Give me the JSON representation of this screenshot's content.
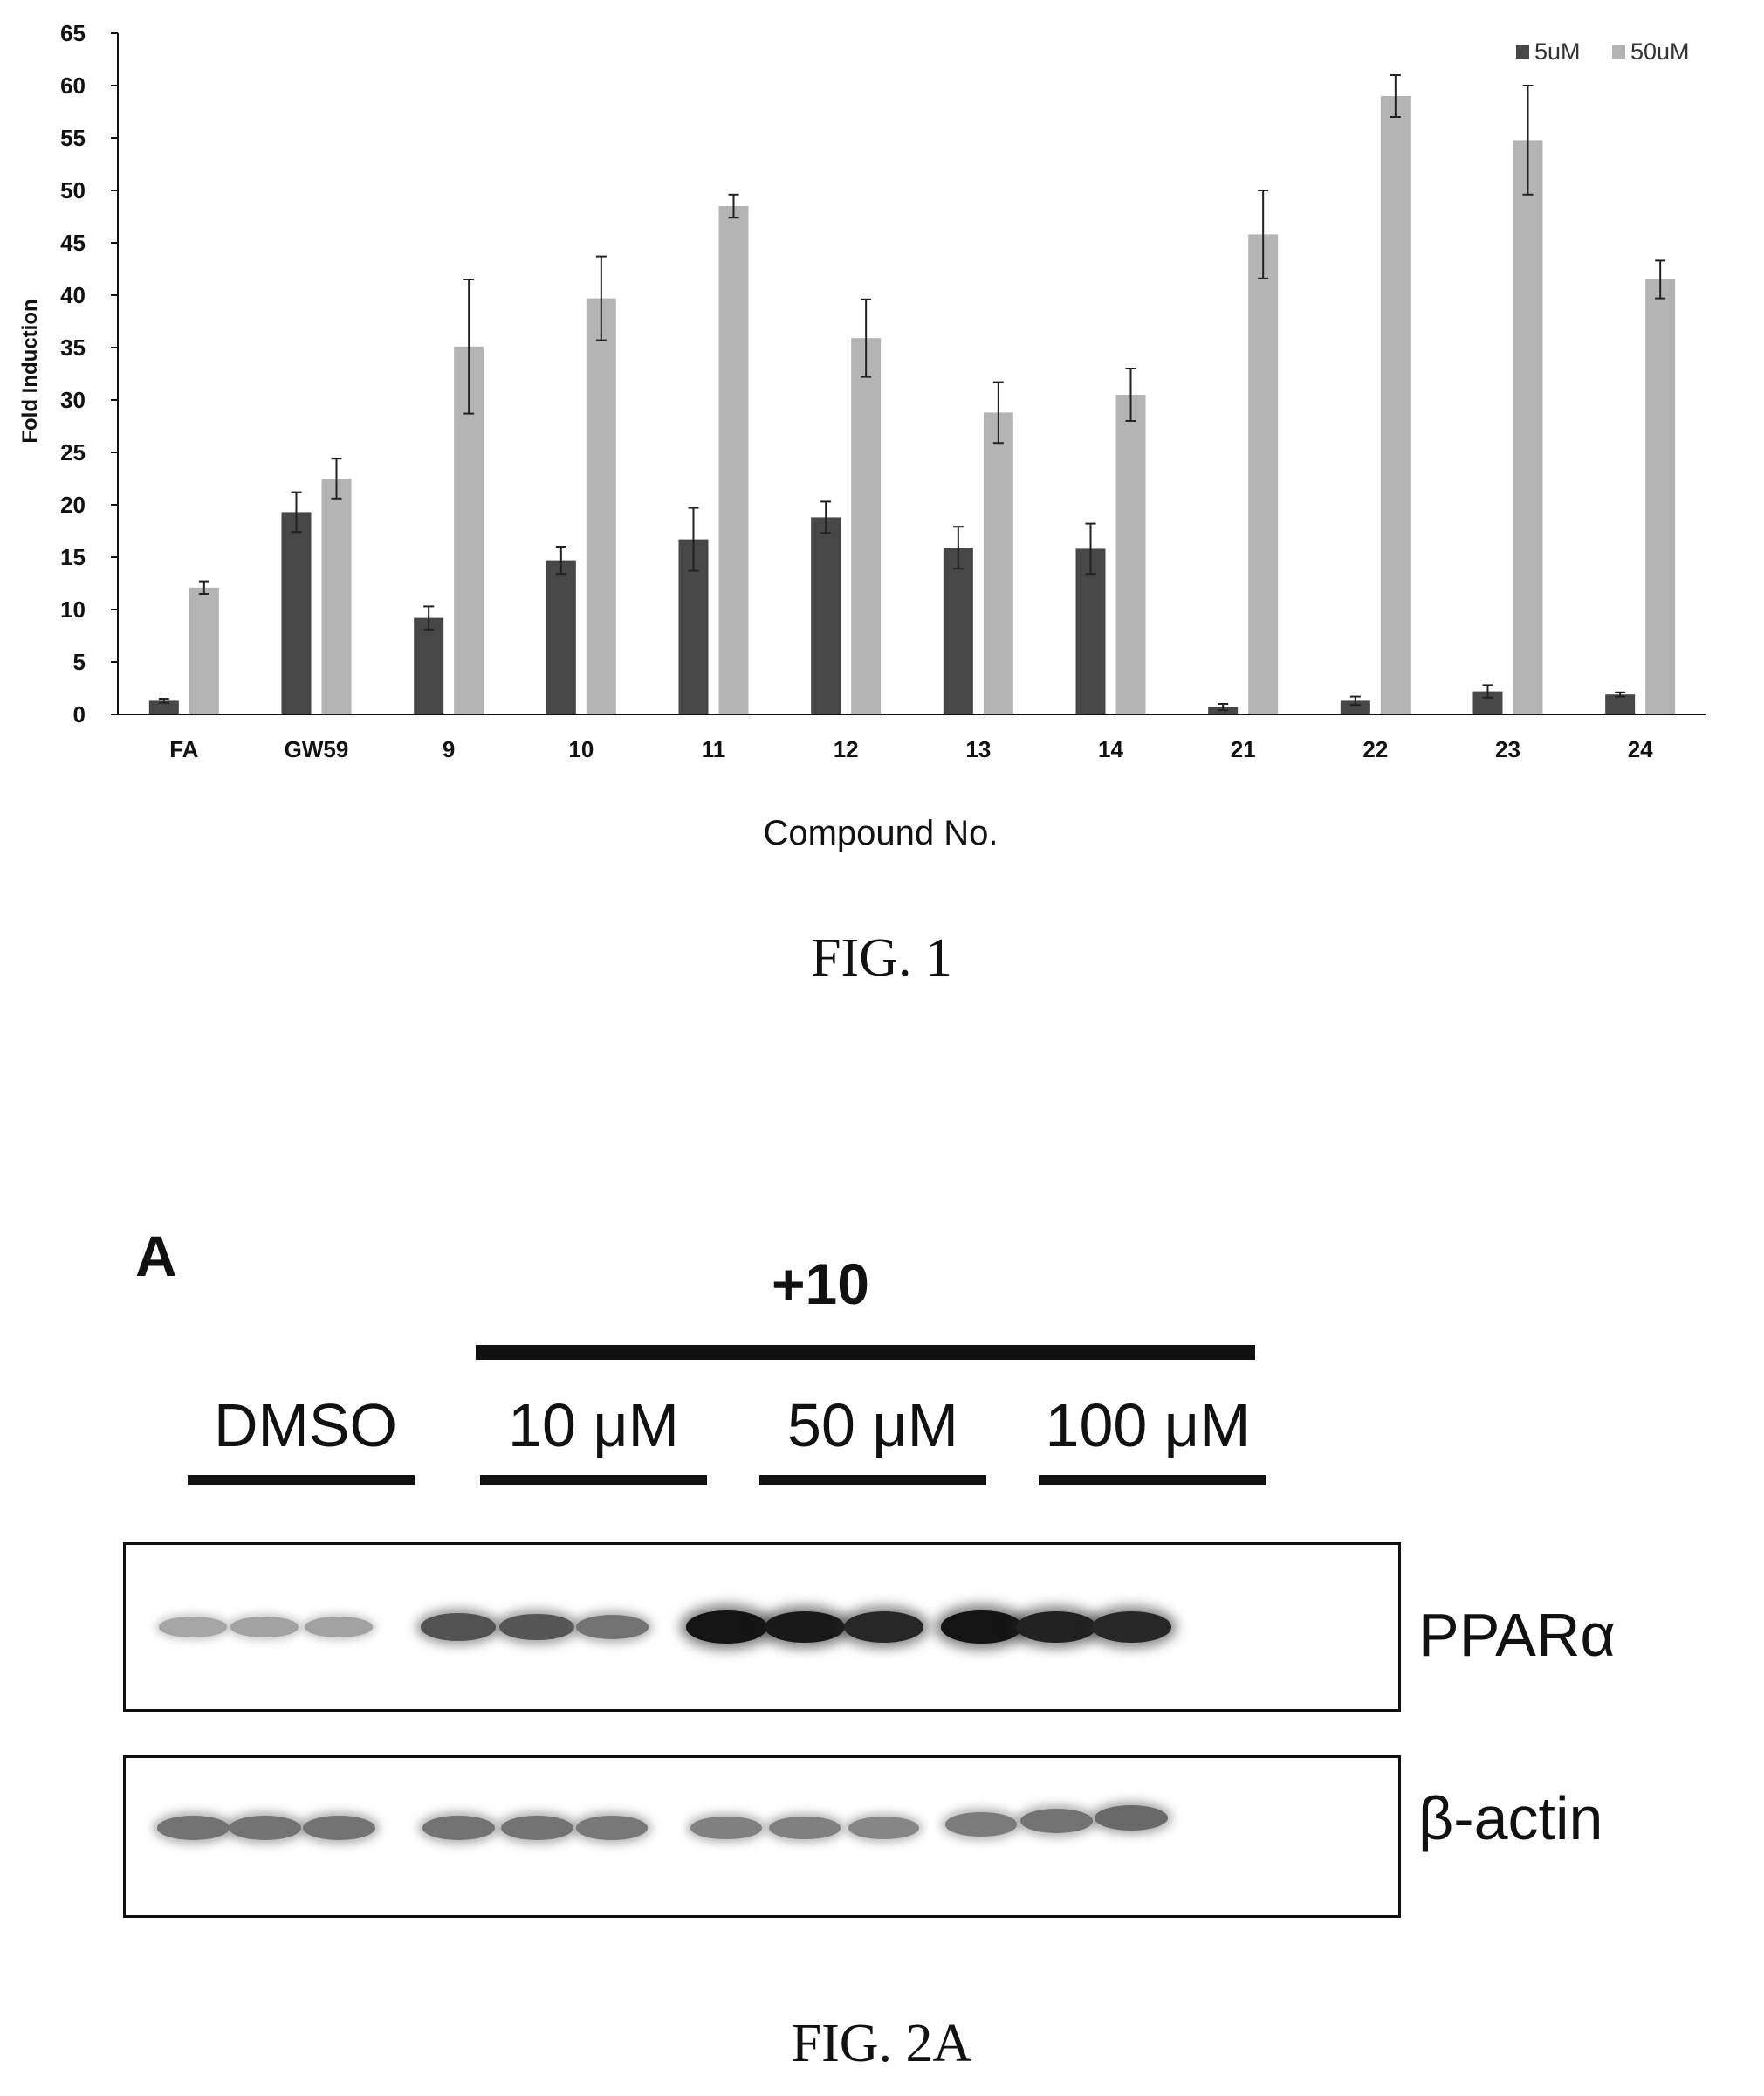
{
  "figure1": {
    "caption": "FIG. 1",
    "chart_data": {
      "type": "bar",
      "title": "",
      "xlabel": "Compound No.",
      "ylabel": "Fold Induction",
      "ylim": [
        0,
        65
      ],
      "yticks": [
        0,
        5,
        10,
        15,
        20,
        25,
        30,
        35,
        40,
        45,
        50,
        55,
        60,
        65
      ],
      "grid": false,
      "legend_position": "top-right",
      "categories": [
        "FA",
        "GW59",
        "9",
        "10",
        "11",
        "12",
        "13",
        "14",
        "21",
        "22",
        "23",
        "24"
      ],
      "series": [
        {
          "name": "5uM",
          "color": "#474747",
          "values": [
            1.3,
            19.3,
            9.2,
            14.7,
            16.7,
            18.8,
            15.9,
            15.8,
            0.7,
            1.3,
            2.2,
            1.9
          ],
          "errors": [
            0.2,
            1.9,
            1.1,
            1.3,
            3.0,
            1.5,
            2.0,
            2.4,
            0.3,
            0.4,
            0.6,
            0.2
          ]
        },
        {
          "name": "50uM",
          "color": "#b4b4b4",
          "values": [
            12.1,
            22.5,
            35.1,
            39.7,
            48.5,
            35.9,
            28.8,
            30.5,
            45.8,
            59.0,
            54.8,
            41.5
          ],
          "errors": [
            0.6,
            1.9,
            6.4,
            4.0,
            1.1,
            3.7,
            2.9,
            2.5,
            4.2,
            2.0,
            5.2,
            1.8
          ]
        }
      ]
    }
  },
  "figure2a": {
    "caption": "FIG. 2A",
    "panel_label": "A",
    "treatment_label": "+10",
    "lane_groups": [
      "DMSO",
      "10 μM",
      "50 μM",
      "100 μM"
    ],
    "blots": [
      {
        "label": "PPARα",
        "band_intensities": [
          0.18,
          0.2,
          0.2,
          0.62,
          0.6,
          0.45,
          0.95,
          0.92,
          0.85,
          0.95,
          0.88,
          0.85
        ]
      },
      {
        "label": "β-actin",
        "band_intensities": [
          0.45,
          0.45,
          0.45,
          0.45,
          0.45,
          0.42,
          0.38,
          0.38,
          0.35,
          0.4,
          0.45,
          0.5
        ]
      }
    ]
  }
}
